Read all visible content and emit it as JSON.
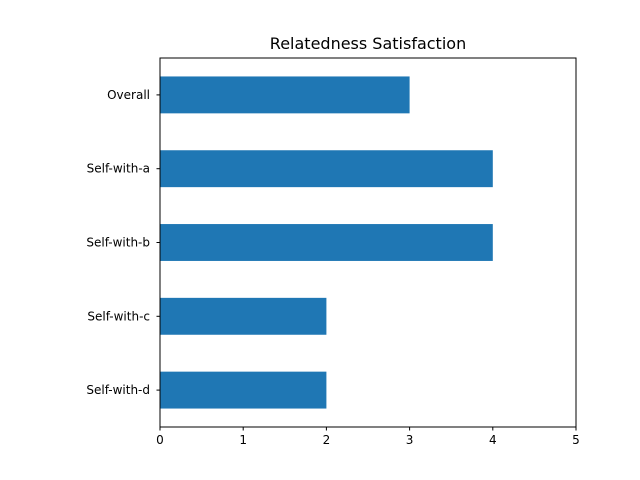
{
  "chart_data": {
    "type": "bar",
    "orientation": "horizontal",
    "title": "Relatedness Satisfaction",
    "xlabel": "",
    "ylabel": "",
    "categories": [
      "Overall",
      "Self-with-a",
      "Self-with-b",
      "Self-with-c",
      "Self-with-d"
    ],
    "values": [
      3,
      4,
      4,
      2,
      2
    ],
    "xlim": [
      0,
      5
    ],
    "xticks": [
      "0",
      "1",
      "2",
      "3",
      "4",
      "5"
    ],
    "grid": false,
    "bar_color": "#1f77b4"
  }
}
